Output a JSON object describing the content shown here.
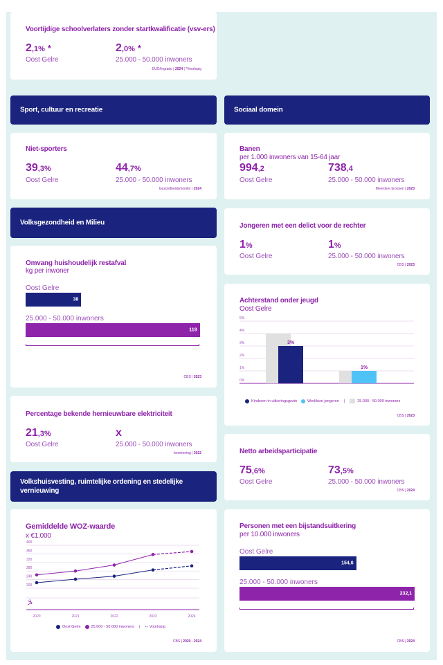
{
  "colors": {
    "navy": "#1a237e",
    "purple": "#8e24aa",
    "light_blue": "#4fc3f7",
    "gray_bar": "#e0e0e0",
    "background": "#e0f1f1"
  },
  "vsv": {
    "title": "Voortijdige schoolverlaters zonder startkwalificatie (vsv-ers)",
    "left": {
      "int": "2",
      "dec": ",1%",
      "star": "*",
      "label": "Oost Gelre"
    },
    "right": {
      "int": "2",
      "dec": ",0%",
      "star": "*",
      "label": "25.000 - 50.000 inwoners"
    },
    "source": "DUO/Ingrado",
    "year": "2024",
    "note": "*Voorlopig"
  },
  "sections": {
    "sport": "Sport, cultuur en recreatie",
    "sociaal": "Sociaal domein",
    "volksgezondheid": "Volksgezondheid en Milieu",
    "volkshuisvesting": "Volkshuisvesting, ruimtelijke ordening en stedelijke vernieuwing"
  },
  "niet_sporters": {
    "title": "Niet-sporters",
    "left": {
      "int": "39",
      "dec": ",3%",
      "label": "Oost Gelre"
    },
    "right": {
      "int": "44",
      "dec": ",7%",
      "label": "25.000 - 50.000 inwoners"
    },
    "source": "Gezondheidsmonitor",
    "year": "2024"
  },
  "banen": {
    "title": "Banen",
    "subtitle": "per 1.000 inwoners van 15-64 jaar",
    "left": {
      "int": "994",
      "dec": ",2",
      "label": "Oost Gelre"
    },
    "right": {
      "int": "738",
      "dec": ",4",
      "label": "25.000 - 50.000 inwoners"
    },
    "source": "Meerdere bronnen",
    "year": "2023"
  },
  "restafval": {
    "title": "Omvang huishoudelijk restafval",
    "subtitle": "kg per inwoner",
    "source": "CBS",
    "year": "2023"
  },
  "jongeren_delict": {
    "title": "Jongeren met een delict voor de rechter",
    "left": {
      "int": "1",
      "dec": "%",
      "label": "Oost Gelre"
    },
    "right": {
      "int": "1",
      "dec": "%",
      "label": "25.000 - 50.000 inwoners"
    },
    "source": "CBS",
    "year": "2023"
  },
  "achterstand": {
    "title": "Achterstand onder jeugd",
    "subtitle": "Oost Gelre",
    "legend": {
      "a": "Kinderen in uitkeringsgezin",
      "b": "Werkloze jongeren",
      "sep": "|",
      "c": "25.000 - 50.000 inwoners"
    },
    "source": "CBS",
    "year": "2023"
  },
  "hernieuwbaar": {
    "title": "Percentage bekende hernieuwbare elektriciteit",
    "left": {
      "int": "21",
      "dec": ",3%",
      "label": "Oost Gelre"
    },
    "right": {
      "int": "x",
      "dec": "",
      "label": "25.000 - 50.000 inwoners"
    },
    "source": "berekening",
    "year": "2022"
  },
  "arbeid": {
    "title": "Netto arbeidsparticipatie",
    "left": {
      "int": "75",
      "dec": ",6%",
      "label": "Oost Gelre"
    },
    "right": {
      "int": "73",
      "dec": ",5%",
      "label": "25.000 - 50.000 inwoners"
    },
    "source": "CBS",
    "year": "2024"
  },
  "woz": {
    "title": "Gemiddelde WOZ-waarde",
    "subtitle": "x €1.000",
    "legend": {
      "a": "Oost Gelre",
      "b": "25.000 - 50.000 inwoners",
      "sep": "|",
      "c": "Voorlopig"
    },
    "source": "CBS",
    "year": "2020 - 2024"
  },
  "bijstand": {
    "title": "Personen met een bijstandsuitkering",
    "subtitle": "per 10.000 inwoners",
    "source": "CBS",
    "year": "2024"
  },
  "chart_data": [
    {
      "id": "restafval",
      "type": "bar",
      "orientation": "horizontal",
      "title": "Omvang huishoudelijk restafval",
      "subtitle": "kg per inwoner",
      "categories": [
        "Oost Gelre",
        "25.000 - 50.000 inwoners"
      ],
      "values": [
        38,
        119
      ],
      "value_labels": [
        "38",
        "119"
      ],
      "xlim": [
        0,
        140
      ]
    },
    {
      "id": "achterstand",
      "type": "bar",
      "title": "Achterstand onder jeugd",
      "subtitle": "Oost Gelre",
      "categories": [
        "Kinderen in uitkeringsgezin",
        "Werkloze jongeren"
      ],
      "series": [
        {
          "name": "25.000 - 50.000 inwoners",
          "values": [
            4,
            1
          ]
        },
        {
          "name": "Oost Gelre",
          "values": [
            3,
            1
          ],
          "labels": [
            "3%",
            "1%"
          ]
        }
      ],
      "yticks": [
        "0%",
        "1%",
        "2%",
        "3%",
        "4%",
        "5%"
      ],
      "ylim": [
        0,
        5
      ],
      "grid": true,
      "legend": "bottom"
    },
    {
      "id": "woz",
      "type": "line",
      "title": "Gemiddelde WOZ-waarde",
      "ylabel": "x €1.000",
      "x": [
        "2020",
        "2021",
        "2022",
        "2023",
        "2024"
      ],
      "series": [
        {
          "name": "Oost Gelre",
          "values": [
            226,
            242,
            256,
            285,
            304
          ],
          "provisional_from": "2023"
        },
        {
          "name": "25.000 - 50.000 inwoners",
          "values": [
            262,
            280,
            308,
            357,
            371
          ],
          "provisional_from": "2023"
        }
      ],
      "yticks": [
        "200",
        "240",
        "280",
        "320",
        "360",
        "400"
      ],
      "ylim": [
        160,
        400
      ],
      "axis_break": true,
      "grid": true,
      "legend": "bottom"
    },
    {
      "id": "bijstand",
      "type": "bar",
      "orientation": "horizontal",
      "title": "Personen met een bijstandsuitkering",
      "subtitle": "per 10.000 inwoners",
      "categories": [
        "Oost Gelre",
        "25.000 - 50.000 inwoners"
      ],
      "values": [
        154.6,
        232.1
      ],
      "value_labels": [
        "154,6",
        "232,1"
      ],
      "xlim": [
        0,
        275
      ]
    }
  ]
}
